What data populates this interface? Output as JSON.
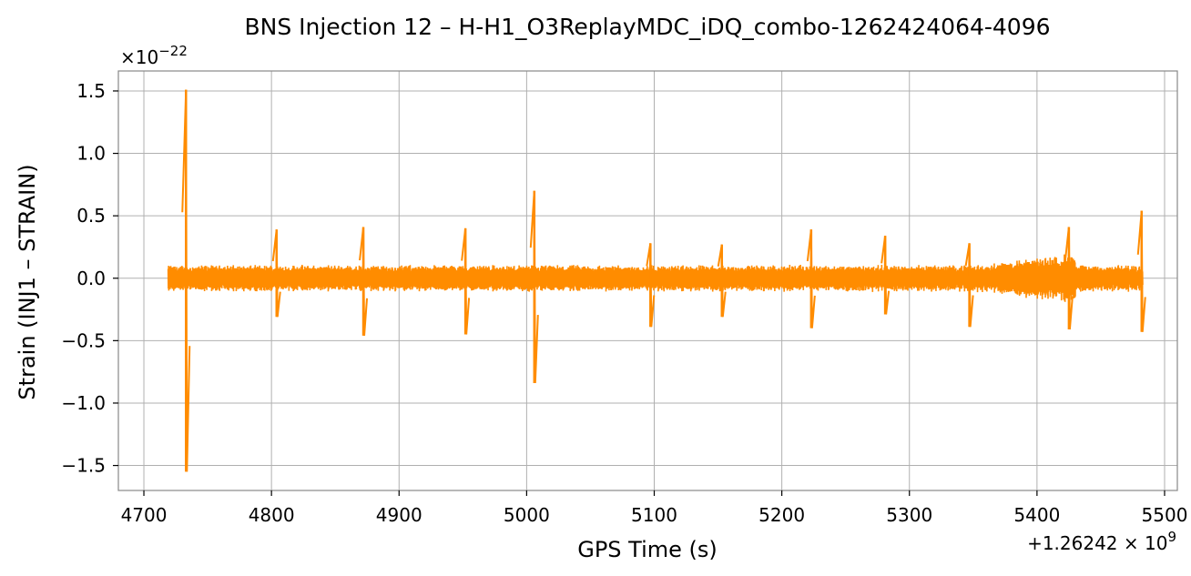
{
  "chart_data": {
    "type": "line",
    "title": "BNS Injection 12 – H-H1_O3ReplayMDC_iDQ_combo-1262424064-4096",
    "xlabel": "GPS Time (s)",
    "ylabel": "Strain (INJ1 – STRAIN)",
    "x_offset_label": "+1.26242 × 10^9",
    "y_scale_label": "×10^−22",
    "xlim": [
      4680,
      5510
    ],
    "ylim": [
      -1.7,
      1.66
    ],
    "x_ticks": [
      4700,
      4800,
      4900,
      5000,
      5100,
      5200,
      5300,
      5400,
      5500
    ],
    "y_ticks": [
      -1.5,
      -1.0,
      -0.5,
      0.0,
      0.5,
      1.0,
      1.5
    ],
    "y_tick_labels": [
      "−1.5",
      "−1.0",
      "−0.5",
      "0.0",
      "0.5",
      "1.0",
      "1.5"
    ],
    "grid": true,
    "series": [
      {
        "color": "#ff8c00",
        "x_range": [
          4719,
          5483
        ],
        "baseline_amplitude": 0.11,
        "spikes": [
          {
            "x": 4733,
            "max": 1.51,
            "min": -1.55
          },
          {
            "x": 4804,
            "max": 0.39,
            "min": -0.31
          },
          {
            "x": 4872,
            "max": 0.41,
            "min": -0.46
          },
          {
            "x": 4952,
            "max": 0.4,
            "min": -0.45
          },
          {
            "x": 5006,
            "max": 0.7,
            "min": -0.84
          },
          {
            "x": 5097,
            "max": 0.28,
            "min": -0.39
          },
          {
            "x": 5153,
            "max": 0.27,
            "min": -0.31
          },
          {
            "x": 5223,
            "max": 0.39,
            "min": -0.4
          },
          {
            "x": 5281,
            "max": 0.34,
            "min": -0.29
          },
          {
            "x": 5347,
            "max": 0.28,
            "min": -0.39
          },
          {
            "x": 5425,
            "max": 0.41,
            "min": -0.41
          },
          {
            "x": 5482,
            "max": 0.54,
            "min": -0.43
          }
        ]
      }
    ]
  }
}
